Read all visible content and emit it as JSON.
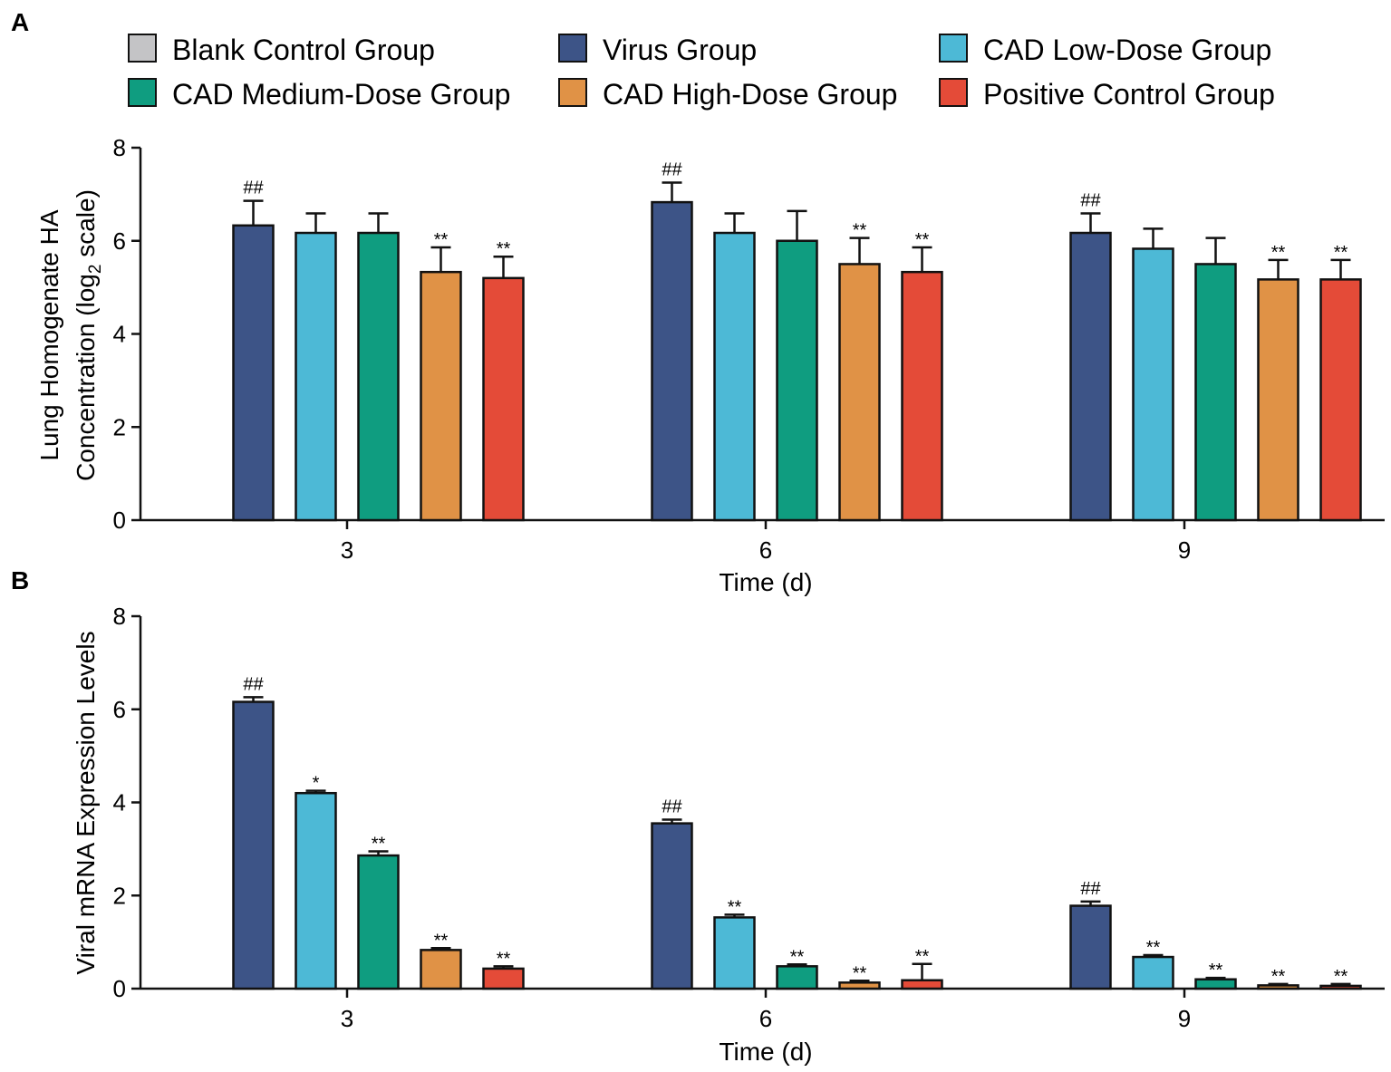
{
  "chart_data": [
    {
      "type": "bar",
      "panel_label": "A",
      "title": "",
      "xlabel": "Time (d)",
      "ylabel_line1": "Lung Homogenate HA",
      "ylabel_line2_prefix": "Concentration (log",
      "ylabel_line2_sub": "2",
      "ylabel_line2_suffix": " scale)",
      "ylim": [
        0,
        8
      ],
      "yticks": [
        "0",
        "2",
        "4",
        "6",
        "8"
      ],
      "grid": false,
      "categories": [
        "3",
        "6",
        "9"
      ],
      "series": [
        {
          "name": "Blank Control Group",
          "color": "#c4c4c6",
          "values": [
            0,
            0,
            0
          ],
          "errors": [
            0,
            0,
            0
          ],
          "sig": [
            "",
            "",
            ""
          ]
        },
        {
          "name": "Virus Group",
          "color": "#3d5487",
          "values": [
            6.33,
            6.83,
            6.17
          ],
          "errors": [
            0.53,
            0.42,
            0.42
          ],
          "sig": [
            "##",
            "##",
            "##"
          ]
        },
        {
          "name": "CAD Low-Dose Group",
          "color": "#4db9d6",
          "values": [
            6.17,
            6.17,
            5.83
          ],
          "errors": [
            0.42,
            0.42,
            0.43
          ],
          "sig": [
            "",
            "",
            ""
          ]
        },
        {
          "name": "CAD Medium-Dose Group",
          "color": "#0f9d80",
          "values": [
            6.17,
            6.0,
            5.5
          ],
          "errors": [
            0.42,
            0.64,
            0.56
          ],
          "sig": [
            "",
            "",
            ""
          ]
        },
        {
          "name": "CAD High-Dose Group",
          "color": "#e09246",
          "values": [
            5.33,
            5.5,
            5.17
          ],
          "errors": [
            0.53,
            0.56,
            0.42
          ],
          "sig": [
            "**",
            "**",
            "**"
          ]
        },
        {
          "name": "Positive Control Group",
          "color": "#e44b38",
          "values": [
            5.2,
            5.33,
            5.17
          ],
          "errors": [
            0.46,
            0.53,
            0.42
          ],
          "sig": [
            "**",
            "**",
            "**"
          ]
        }
      ]
    },
    {
      "type": "bar",
      "panel_label": "B",
      "title": "",
      "xlabel": "Time (d)",
      "ylabel_line1": "Viral mRNA Expression Levels",
      "ylim": [
        0,
        8
      ],
      "yticks": [
        "0",
        "2",
        "4",
        "6",
        "8"
      ],
      "grid": false,
      "categories": [
        "3",
        "6",
        "9"
      ],
      "series": [
        {
          "name": "Blank Control Group",
          "color": "#c4c4c6",
          "values": [
            0,
            0,
            0
          ],
          "errors": [
            0,
            0,
            0
          ],
          "sig": [
            "",
            "",
            ""
          ]
        },
        {
          "name": "Virus Group",
          "color": "#3d5487",
          "values": [
            6.16,
            3.55,
            1.78
          ],
          "errors": [
            0.1,
            0.08,
            0.09
          ],
          "sig": [
            "##",
            "##",
            "##"
          ]
        },
        {
          "name": "CAD Low-Dose Group",
          "color": "#4db9d6",
          "values": [
            4.2,
            1.53,
            0.68
          ],
          "errors": [
            0.05,
            0.06,
            0.04
          ],
          "sig": [
            "*",
            "**",
            "**"
          ]
        },
        {
          "name": "CAD Medium-Dose Group",
          "color": "#0f9d80",
          "values": [
            2.86,
            0.48,
            0.2
          ],
          "errors": [
            0.09,
            0.04,
            0.03
          ],
          "sig": [
            "**",
            "**",
            "**"
          ]
        },
        {
          "name": "CAD High-Dose Group",
          "color": "#e09246",
          "values": [
            0.83,
            0.13,
            0.07
          ],
          "errors": [
            0.04,
            0.04,
            0.03
          ],
          "sig": [
            "**",
            "**",
            "**"
          ]
        },
        {
          "name": "Positive Control Group",
          "color": "#e44b38",
          "values": [
            0.43,
            0.18,
            0.06
          ],
          "errors": [
            0.05,
            0.35,
            0.04
          ],
          "sig": [
            "**",
            "**",
            "**"
          ]
        }
      ]
    }
  ]
}
